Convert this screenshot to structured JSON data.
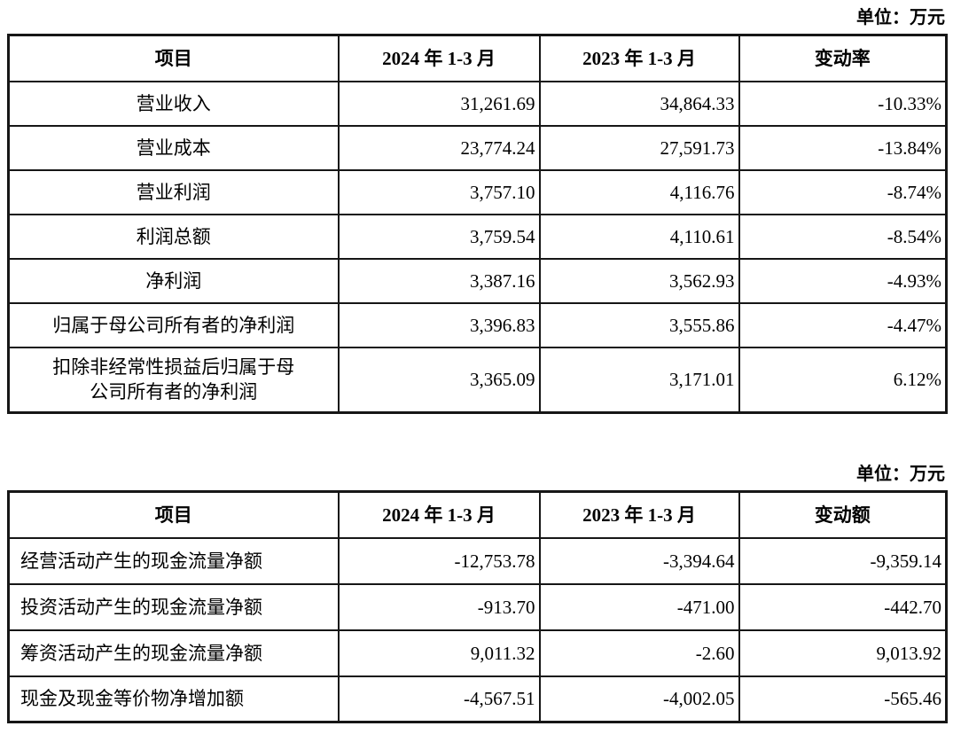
{
  "unit_label_1": "单位：万元",
  "unit_label_2": "单位：万元",
  "profit_table": {
    "headers": [
      "项目",
      "2024 年 1-3 月",
      "2023 年 1-3 月",
      "变动率"
    ],
    "rows": [
      {
        "item": "营业收入",
        "v2024": "31,261.69",
        "v2023": "34,864.33",
        "change": "-10.33%"
      },
      {
        "item": "营业成本",
        "v2024": "23,774.24",
        "v2023": "27,591.73",
        "change": "-13.84%"
      },
      {
        "item": "营业利润",
        "v2024": "3,757.10",
        "v2023": "4,116.76",
        "change": "-8.74%"
      },
      {
        "item": "利润总额",
        "v2024": "3,759.54",
        "v2023": "4,110.61",
        "change": "-8.54%"
      },
      {
        "item": "净利润",
        "v2024": "3,387.16",
        "v2023": "3,562.93",
        "change": "-4.93%"
      },
      {
        "item": "归属于母公司所有者的净利润",
        "v2024": "3,396.83",
        "v2023": "3,555.86",
        "change": "-4.47%"
      },
      {
        "item": "扣除非经常性损益后归属于母\n公司所有者的净利润",
        "v2024": "3,365.09",
        "v2023": "3,171.01",
        "change": "6.12%"
      }
    ]
  },
  "cashflow_table": {
    "headers": [
      "项目",
      "2024 年 1-3 月",
      "2023 年 1-3 月",
      "变动额"
    ],
    "rows": [
      {
        "item": "经营活动产生的现金流量净额",
        "v2024": "-12,753.78",
        "v2023": "-3,394.64",
        "change": "-9,359.14"
      },
      {
        "item": "投资活动产生的现金流量净额",
        "v2024": "-913.70",
        "v2023": "-471.00",
        "change": "-442.70"
      },
      {
        "item": "筹资活动产生的现金流量净额",
        "v2024": "9,011.32",
        "v2023": "-2.60",
        "change": "9,013.92"
      },
      {
        "item": "现金及现金等价物净增加额",
        "v2024": "-4,567.51",
        "v2023": "-4,002.05",
        "change": "-565.46"
      }
    ]
  }
}
